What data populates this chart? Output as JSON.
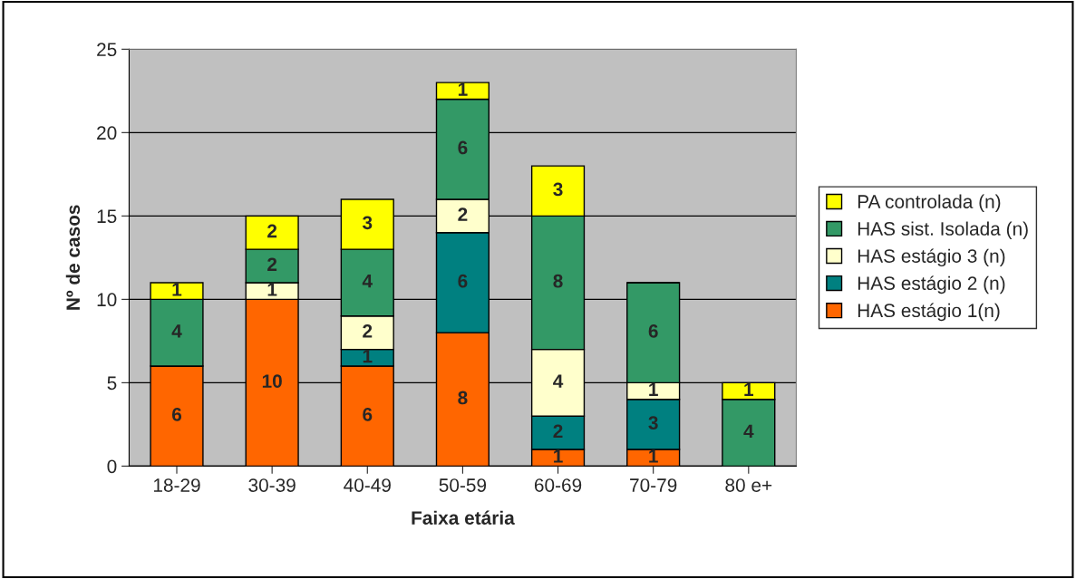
{
  "chart_data": {
    "type": "bar",
    "stacked": true,
    "xlabel": "Faixa etária",
    "ylabel": "Nº de casos",
    "categories": [
      "18-29",
      "30-39",
      "40-49",
      "50-59",
      "60-69",
      "70-79",
      "80 e+"
    ],
    "series": [
      {
        "name": "HAS estágio 1(n)",
        "color": "#ff6600",
        "values": [
          6,
          10,
          6,
          8,
          1,
          1,
          null
        ]
      },
      {
        "name": "HAS estágio 2 (n)",
        "color": "#008080",
        "values": [
          null,
          null,
          1,
          6,
          2,
          3,
          null
        ]
      },
      {
        "name": "HAS estágio 3 (n)",
        "color": "#ffffcc",
        "values": [
          null,
          1,
          2,
          2,
          4,
          1,
          null
        ]
      },
      {
        "name": "HAS sist. Isolada (n)",
        "color": "#339966",
        "values": [
          4,
          2,
          4,
          6,
          8,
          6,
          4
        ]
      },
      {
        "name": "PA controlada (n)",
        "color": "#ffff00",
        "values": [
          1,
          2,
          3,
          1,
          3,
          null,
          1
        ]
      }
    ],
    "ylim": [
      0,
      25
    ],
    "yticks": [
      0,
      5,
      10,
      15,
      20,
      25
    ],
    "grid": "y",
    "legend": "right",
    "data_labels": true
  }
}
